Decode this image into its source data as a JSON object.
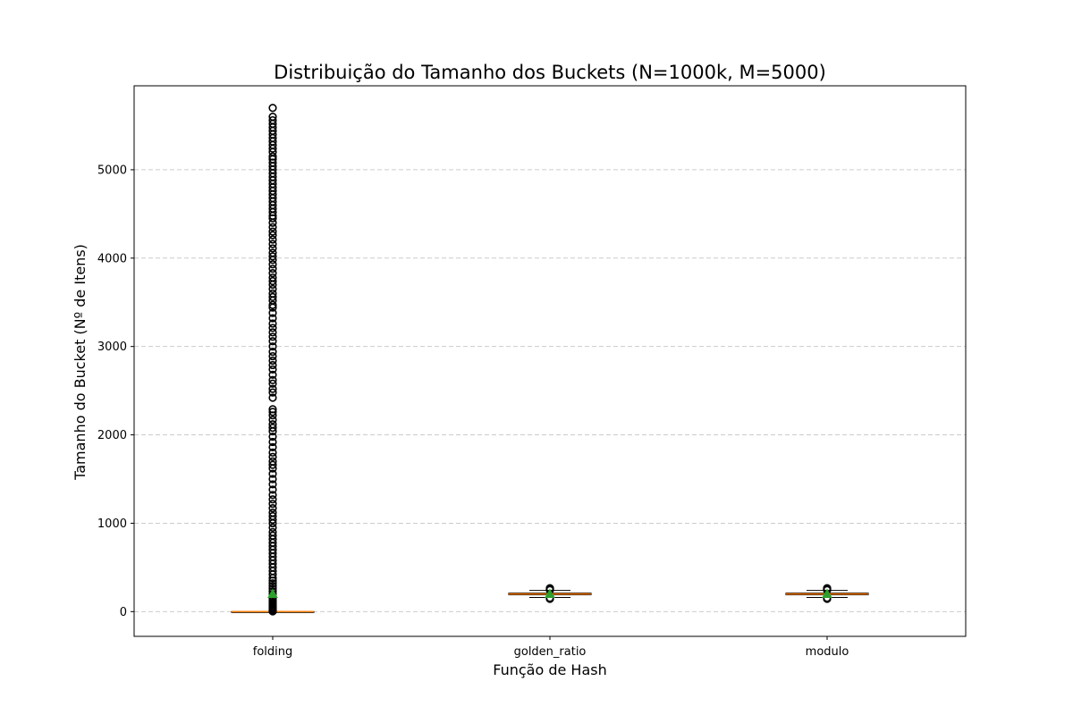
{
  "chart_data": {
    "type": "box",
    "title": "Distribuição do Tamanho dos Buckets (N=1000k, M=5000)",
    "xlabel": "Função de Hash",
    "ylabel": "Tamanho do Bucket (Nº de Itens)",
    "ylim": [
      -280,
      5950
    ],
    "yticks": [
      0,
      1000,
      2000,
      3000,
      4000,
      5000
    ],
    "grid": "y-dashed",
    "categories": [
      "folding",
      "golden_ratio",
      "modulo"
    ],
    "boxes": [
      {
        "name": "folding",
        "whisker_low": 0,
        "q1": 0,
        "median": 0,
        "q3": 0,
        "whisker_high": 0,
        "mean": 200,
        "outliers": [
          3,
          6,
          10,
          15,
          20,
          30,
          40,
          50,
          60,
          75,
          90,
          110,
          130,
          150,
          170,
          200,
          230,
          260,
          290,
          320,
          350,
          380,
          420,
          460,
          500,
          540,
          580,
          620,
          660,
          700,
          740,
          780,
          820,
          860,
          900,
          950,
          1000,
          1040,
          1080,
          1120,
          1170,
          1220,
          1270,
          1320,
          1380,
          1440,
          1500,
          1560,
          1620,
          1660,
          1700,
          1750,
          1800,
          1860,
          1920,
          1980,
          2040,
          2080,
          2120,
          2170,
          2220,
          2260,
          2290,
          2420,
          2480,
          2520,
          2580,
          2620,
          2680,
          2740,
          2790,
          2840,
          2890,
          2940,
          3000,
          3060,
          3110,
          3160,
          3210,
          3260,
          3320,
          3380,
          3440,
          3470,
          3520,
          3560,
          3600,
          3650,
          3700,
          3740,
          3780,
          3830,
          3880,
          3930,
          3980,
          4020,
          4060,
          4110,
          4160,
          4210,
          4260,
          4300,
          4350,
          4400,
          4450,
          4480,
          4520,
          4560,
          4600,
          4640,
          4680,
          4720,
          4760,
          4800,
          4840,
          4880,
          4920,
          4960,
          5000,
          5040,
          5080,
          5120,
          5150,
          5200,
          5240,
          5280,
          5320,
          5360,
          5400,
          5440,
          5480,
          5520,
          5560,
          5600,
          5700
        ]
      },
      {
        "name": "golden_ratio",
        "whisker_low": 160,
        "q1": 190,
        "median": 200,
        "q3": 210,
        "whisker_high": 240,
        "mean": 200,
        "outliers": [
          145,
          150,
          155,
          245,
          250,
          255,
          260,
          265
        ]
      },
      {
        "name": "modulo",
        "whisker_low": 160,
        "q1": 190,
        "median": 200,
        "q3": 210,
        "whisker_high": 240,
        "mean": 200,
        "outliers": [
          145,
          150,
          155,
          245,
          250,
          255,
          260,
          265
        ]
      }
    ],
    "colors": {
      "box": "#000000",
      "median": "#ff7f0e",
      "mean_marker": "#2ca02c",
      "outlier": "#000000",
      "grid": "#cccccc"
    }
  }
}
